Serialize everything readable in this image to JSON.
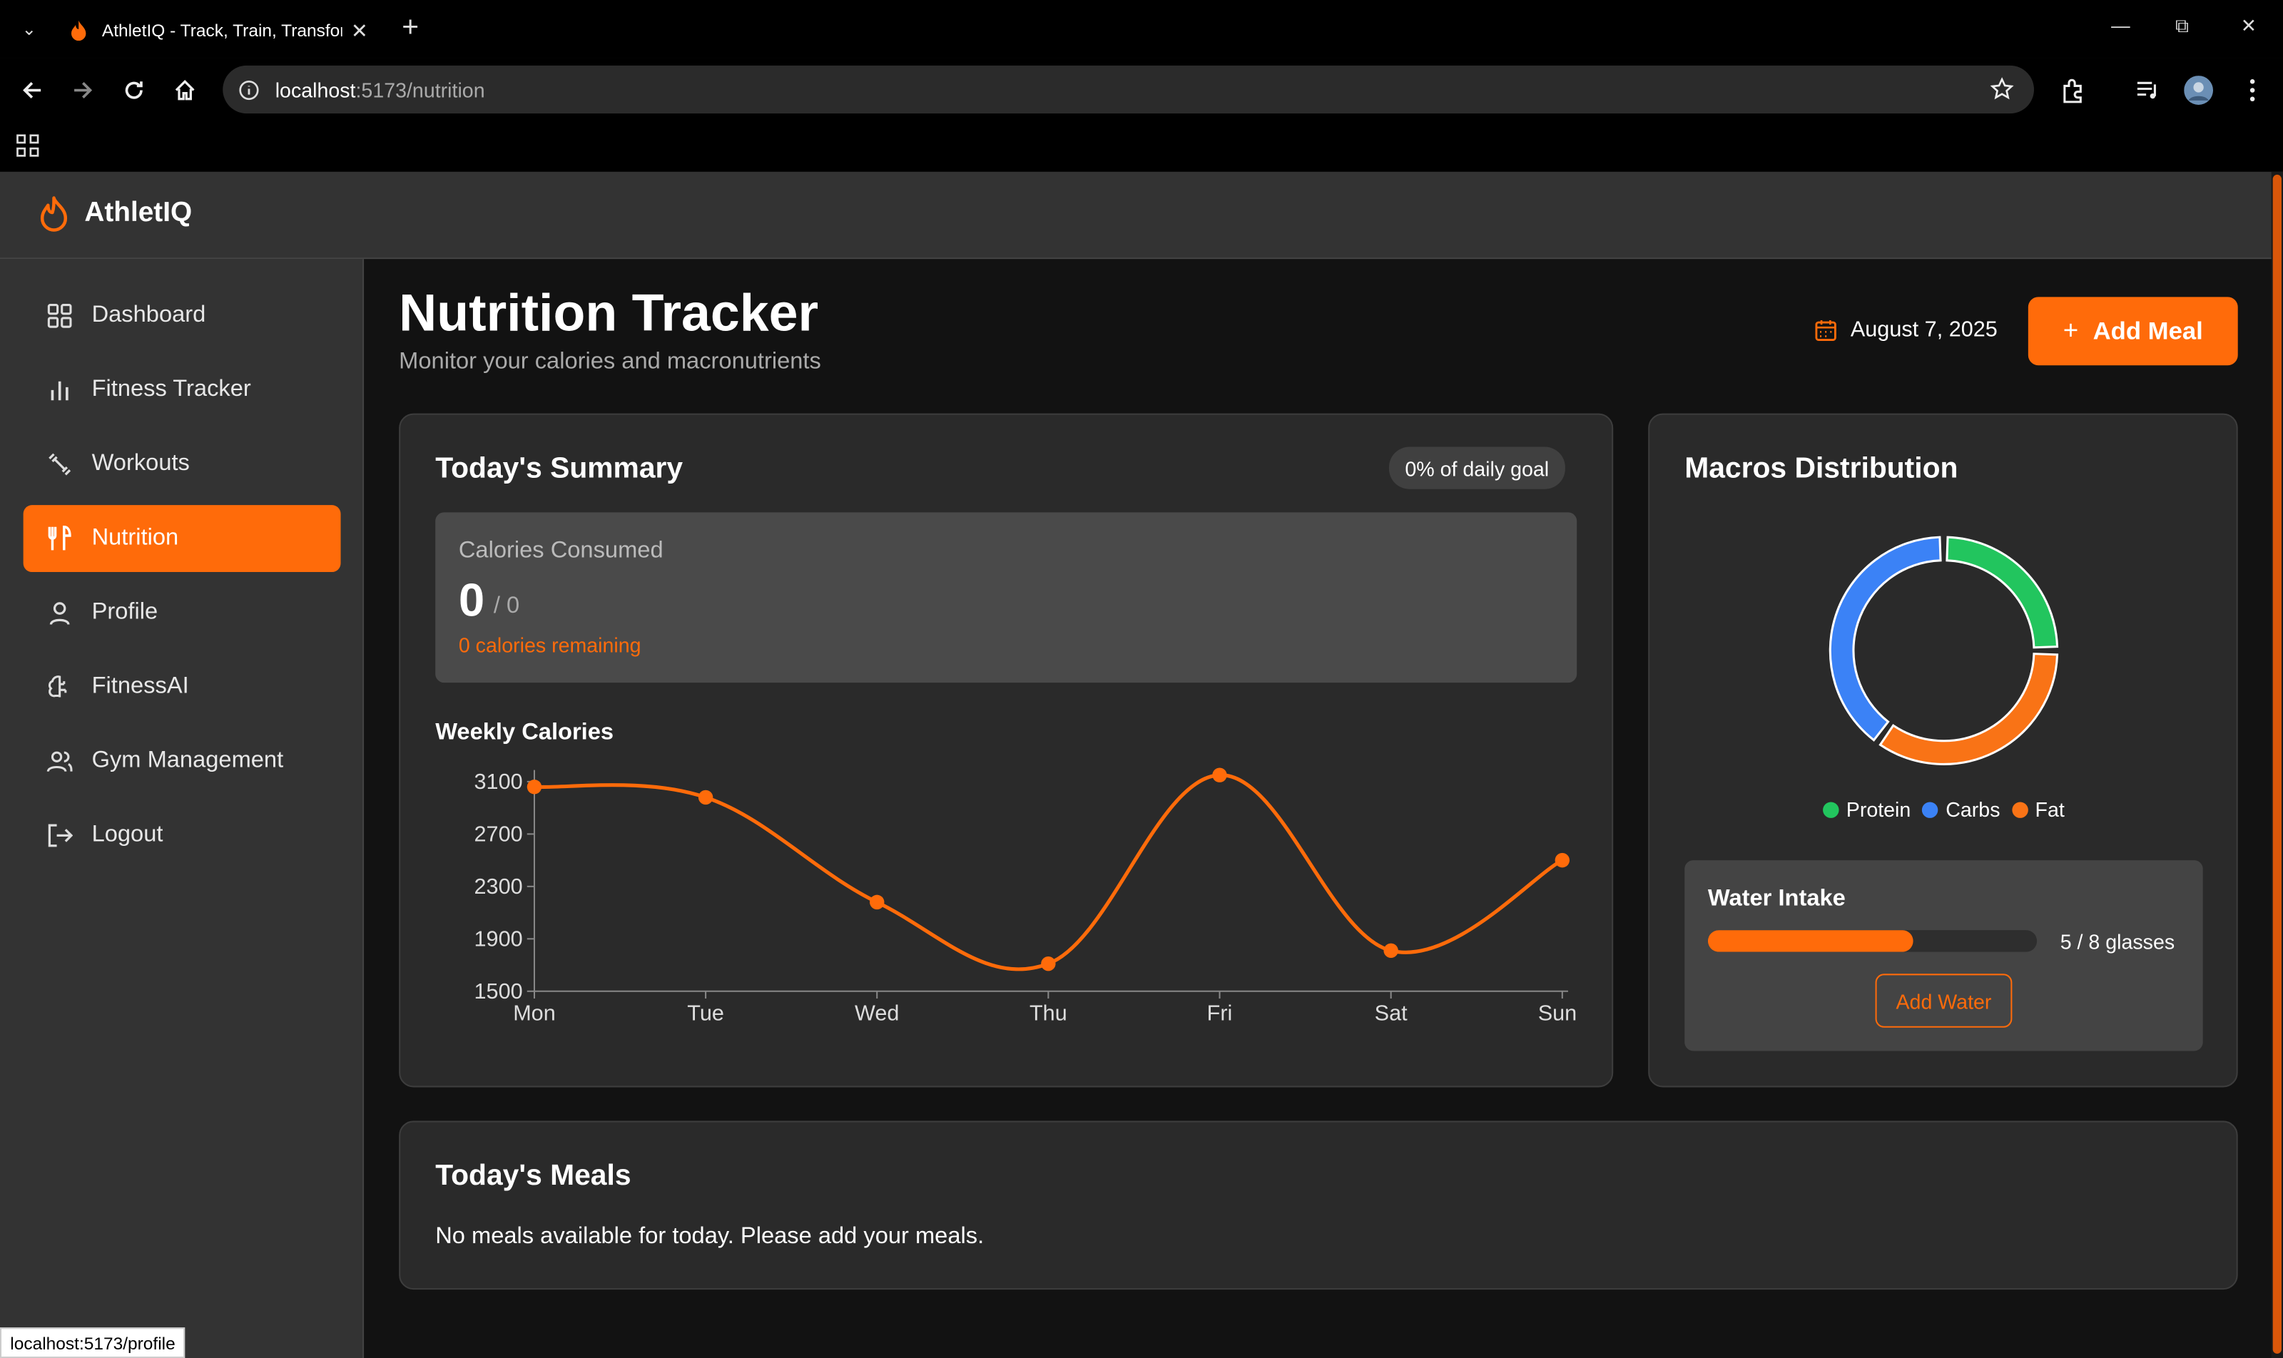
{
  "browser": {
    "tab_title": "AthletIQ - Track, Train, Transform",
    "url_host": "localhost",
    "url_path": ":5173/nutrition",
    "status_url": "localhost:5173/profile"
  },
  "app": {
    "brand": "AthletIQ",
    "accent_color": "#ff6b0a"
  },
  "sidebar": {
    "items": [
      {
        "label": "Dashboard",
        "icon": "grid-icon"
      },
      {
        "label": "Fitness Tracker",
        "icon": "bar-chart-icon"
      },
      {
        "label": "Workouts",
        "icon": "dumbbell-icon"
      },
      {
        "label": "Nutrition",
        "icon": "utensils-icon",
        "active": true
      },
      {
        "label": "Profile",
        "icon": "user-icon"
      },
      {
        "label": "FitnessAI",
        "icon": "brain-icon"
      },
      {
        "label": "Gym Management",
        "icon": "users-icon"
      },
      {
        "label": "Logout",
        "icon": "logout-icon"
      }
    ]
  },
  "page": {
    "title": "Nutrition Tracker",
    "subtitle": "Monitor your calories and macronutrients",
    "date": "August 7, 2025",
    "add_meal_label": "Add Meal"
  },
  "summary": {
    "title": "Today's Summary",
    "goal_badge": "0% of daily goal",
    "calories_label": "Calories Consumed",
    "calories_value": "0",
    "calories_target": "/ 0",
    "remaining": "0 calories remaining"
  },
  "weekly": {
    "title": "Weekly Calories"
  },
  "chart_data": {
    "type": "line",
    "title": "Weekly Calories",
    "categories": [
      "Mon",
      "Tue",
      "Wed",
      "Thu",
      "Fri",
      "Sat",
      "Sun"
    ],
    "values": [
      3060,
      2980,
      2180,
      1710,
      3150,
      1810,
      2500
    ],
    "yticks": [
      1500,
      1900,
      2300,
      2700,
      3100
    ],
    "ylim": [
      1500,
      3100
    ],
    "color": "#ff6b0a"
  },
  "macros": {
    "title": "Macros Distribution",
    "legend": [
      {
        "label": "Protein",
        "color": "#22c55e",
        "value": 25
      },
      {
        "label": "Carbs",
        "color": "#3b82f6",
        "value": 40
      },
      {
        "label": "Fat",
        "color": "#f97316",
        "value": 35
      }
    ]
  },
  "water": {
    "title": "Water Intake",
    "count": "5 / 8 glasses",
    "fraction": 0.625,
    "button": "Add Water"
  },
  "meals": {
    "title": "Today's Meals",
    "empty": "No meals available for today. Please add your meals."
  }
}
